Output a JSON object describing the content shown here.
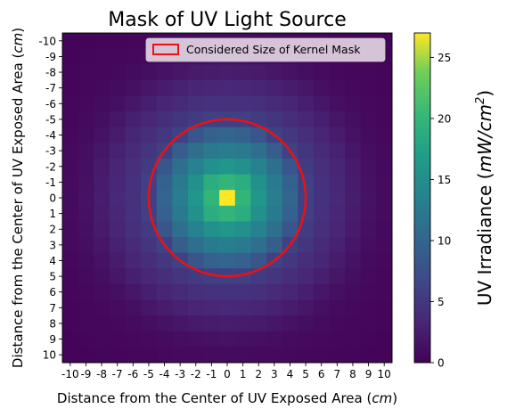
{
  "chart_data": {
    "type": "heatmap",
    "title": "Mask of UV Light Source",
    "xlabel": "Distance from the Center of UV Exposed Area",
    "xlabel_unit": "cm",
    "ylabel": "Distance from the Center of UV Exposed Area",
    "ylabel_unit": "cm",
    "x_ticks": [
      "-10",
      "-9",
      "-8",
      "-7",
      "-6",
      "-5",
      "-4",
      "-3",
      "-2",
      "-1",
      "0",
      "1",
      "2",
      "3",
      "4",
      "5",
      "6",
      "7",
      "8",
      "9",
      "10"
    ],
    "y_ticks": [
      "-10",
      "-9",
      "-8",
      "-7",
      "-6",
      "-5",
      "-4",
      "-3",
      "-2",
      "-1",
      "0",
      "1",
      "2",
      "3",
      "4",
      "5",
      "6",
      "7",
      "8",
      "9",
      "10"
    ],
    "x_range": [
      -10,
      10
    ],
    "y_range": [
      -10,
      10
    ],
    "y_axis_inverted": true,
    "colormap": "viridis",
    "colorbar": {
      "label": "UV Irradiance",
      "label_unit": "mW/cm",
      "label_unit_power": "2",
      "range": [
        0,
        27
      ],
      "ticks": [
        "0",
        "5",
        "10",
        "15",
        "20",
        "25"
      ]
    },
    "overlay_circle": {
      "center": [
        0,
        0
      ],
      "radius": 5,
      "color": "#ee1111"
    },
    "legend": {
      "label": "Considered Size of Kernel Mask",
      "placement": "top-right"
    },
    "values_description_model": {
      "profile": [
        [
          0,
          27
        ],
        [
          1,
          20
        ],
        [
          1.41,
          19
        ],
        [
          2,
          16
        ],
        [
          3,
          13
        ],
        [
          4,
          10
        ],
        [
          5,
          6
        ],
        [
          6,
          4.5
        ],
        [
          7,
          3.5
        ],
        [
          8,
          2.5
        ],
        [
          9,
          1.5
        ],
        [
          10,
          0.9
        ],
        [
          11,
          0.6
        ],
        [
          12,
          0.5
        ],
        [
          14.2,
          0.3
        ]
      ],
      "unit": "mW/cm^2"
    }
  }
}
